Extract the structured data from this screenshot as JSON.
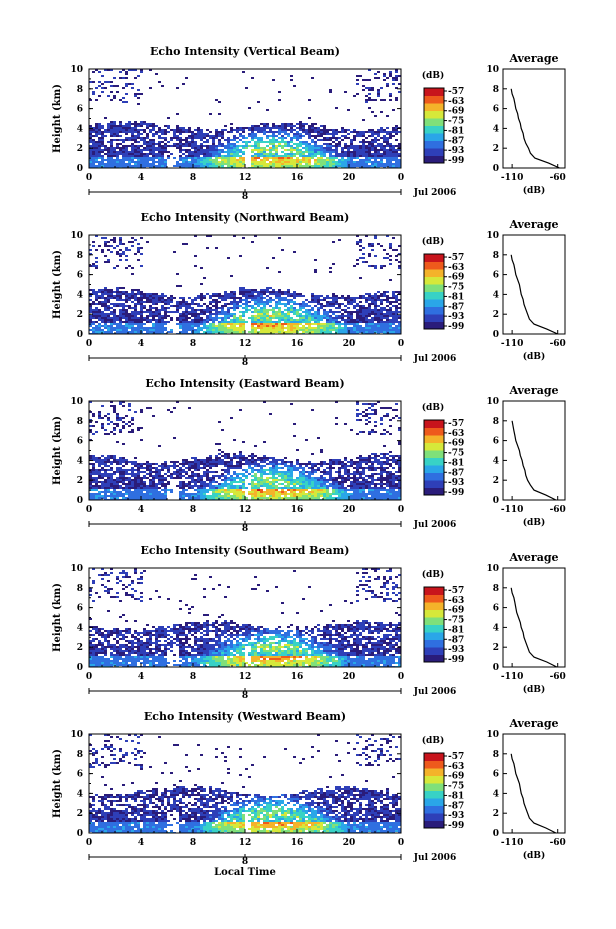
{
  "colors": {
    "colorbar": [
      "#2a1c7a",
      "#2e3fb8",
      "#2f6fe0",
      "#2aa6e8",
      "#38d2c6",
      "#7fe07a",
      "#d6e83a",
      "#f4b32a",
      "#ee5a1c",
      "#c8141c"
    ],
    "cloud_dark": "#2b2a66",
    "line": "#000000"
  },
  "shared": {
    "colorbar_unit": "(dB)",
    "colorbar_ticks": [
      "-57",
      "-63",
      "-69",
      "-75",
      "-81",
      "-87",
      "-93",
      "-99"
    ],
    "average_title": "Average",
    "average_xlabel": "(dB)",
    "date_label": "Jul 2006",
    "date_marker": "8",
    "ylabel": "Height (km)",
    "xlabel": "Local Time"
  },
  "chart_data": [
    {
      "type": "heatmap",
      "title": "Echo Intensity (Vertical Beam)",
      "ylabel": "Height (km)",
      "x_ticks": [
        "0",
        "4",
        "8",
        "12",
        "16",
        "20",
        "0"
      ],
      "y_ticks": [
        "0",
        "2",
        "4",
        "6",
        "8",
        "10"
      ],
      "xlim": [
        0,
        24
      ],
      "ylim": [
        0,
        10
      ],
      "colorbar": {
        "label": "(dB)",
        "range": [
          -99,
          -57
        ],
        "ticks": [
          -57,
          -63,
          -69,
          -75,
          -81,
          -87,
          -93,
          -99
        ]
      },
      "average_profile": {
        "title": "Average",
        "xlabel": "(dB)",
        "x_ticks": [
          "-110",
          "-60"
        ],
        "y_ticks": [
          "0",
          "2",
          "4",
          "6",
          "8",
          "10"
        ],
        "height_km": [
          0,
          0.5,
          1,
          1.5,
          2,
          2.5,
          3,
          3.5,
          4,
          4.5,
          5,
          5.5,
          6,
          6.5,
          7,
          7.5,
          8
        ],
        "db": [
          -58,
          -70,
          -85,
          -90,
          -92,
          -95,
          -97,
          -98,
          -100,
          -101,
          -103,
          -104,
          -106,
          -107,
          -108,
          -110,
          -111
        ]
      }
    },
    {
      "type": "heatmap",
      "title": "Echo Intensity (Northward Beam)",
      "ylabel": "Height (km)",
      "x_ticks": [
        "0",
        "4",
        "8",
        "12",
        "16",
        "20",
        "0"
      ],
      "y_ticks": [
        "0",
        "2",
        "4",
        "6",
        "8",
        "10"
      ],
      "xlim": [
        0,
        24
      ],
      "ylim": [
        0,
        10
      ],
      "colorbar": {
        "label": "(dB)",
        "range": [
          -99,
          -57
        ],
        "ticks": [
          -57,
          -63,
          -69,
          -75,
          -81,
          -87,
          -93,
          -99
        ]
      },
      "average_profile": {
        "title": "Average",
        "xlabel": "(dB)",
        "x_ticks": [
          "-110",
          "-60"
        ],
        "y_ticks": [
          "0",
          "2",
          "4",
          "6",
          "8",
          "10"
        ],
        "height_km": [
          0,
          0.5,
          1,
          1.5,
          2,
          2.5,
          3,
          3.5,
          4,
          4.5,
          5,
          5.5,
          6,
          6.5,
          7,
          7.5,
          8
        ],
        "db": [
          -60,
          -72,
          -86,
          -91,
          -93,
          -95,
          -97,
          -98,
          -100,
          -101,
          -102,
          -104,
          -106,
          -107,
          -108,
          -110,
          -111
        ]
      }
    },
    {
      "type": "heatmap",
      "title": "Echo Intensity (Eastward Beam)",
      "ylabel": "Height (km)",
      "x_ticks": [
        "0",
        "4",
        "8",
        "12",
        "16",
        "20",
        "0"
      ],
      "y_ticks": [
        "0",
        "2",
        "4",
        "6",
        "8",
        "10"
      ],
      "xlim": [
        0,
        24
      ],
      "ylim": [
        0,
        10
      ],
      "colorbar": {
        "label": "(dB)",
        "range": [
          -99,
          -57
        ],
        "ticks": [
          -57,
          -63,
          -69,
          -75,
          -81,
          -87,
          -93,
          -99
        ]
      },
      "average_profile": {
        "title": "Average",
        "xlabel": "(dB)",
        "x_ticks": [
          "-110",
          "-60"
        ],
        "y_ticks": [
          "0",
          "2",
          "4",
          "6",
          "8",
          "10"
        ],
        "height_km": [
          0,
          0.5,
          1,
          1.5,
          2,
          2.5,
          3,
          3.5,
          4,
          4.5,
          5,
          5.5,
          6,
          6.5,
          7,
          7.5,
          8
        ],
        "db": [
          -62,
          -73,
          -86,
          -90,
          -93,
          -95,
          -96,
          -98,
          -99,
          -101,
          -102,
          -104,
          -106,
          -107,
          -108,
          -109,
          -110
        ]
      }
    },
    {
      "type": "heatmap",
      "title": "Echo Intensity (Southward Beam)",
      "ylabel": "Height (km)",
      "x_ticks": [
        "0",
        "4",
        "8",
        "12",
        "16",
        "20",
        "0"
      ],
      "y_ticks": [
        "0",
        "2",
        "4",
        "6",
        "8",
        "10"
      ],
      "xlim": [
        0,
        24
      ],
      "ylim": [
        0,
        10
      ],
      "colorbar": {
        "label": "(dB)",
        "range": [
          -99,
          -57
        ],
        "ticks": [
          -57,
          -63,
          -69,
          -75,
          -81,
          -87,
          -93,
          -99
        ]
      },
      "average_profile": {
        "title": "Average",
        "xlabel": "(dB)",
        "x_ticks": [
          "-110",
          "-60"
        ],
        "y_ticks": [
          "0",
          "2",
          "4",
          "6",
          "8",
          "10"
        ],
        "height_km": [
          0,
          0.5,
          1,
          1.5,
          2,
          2.5,
          3,
          3.5,
          4,
          4.5,
          5,
          5.5,
          6,
          6.5,
          7,
          7.5,
          8
        ],
        "db": [
          -61,
          -72,
          -86,
          -91,
          -93,
          -95,
          -97,
          -98,
          -100,
          -101,
          -103,
          -105,
          -106,
          -107,
          -108,
          -110,
          -111
        ]
      }
    },
    {
      "type": "heatmap",
      "title": "Echo Intensity (Westward Beam)",
      "ylabel": "Height (km)",
      "xlabel": "Local Time",
      "x_ticks": [
        "0",
        "4",
        "8",
        "12",
        "16",
        "20",
        "0"
      ],
      "y_ticks": [
        "0",
        "2",
        "4",
        "6",
        "8",
        "10"
      ],
      "xlim": [
        0,
        24
      ],
      "ylim": [
        0,
        10
      ],
      "colorbar": {
        "label": "(dB)",
        "range": [
          -99,
          -57
        ],
        "ticks": [
          -57,
          -63,
          -69,
          -75,
          -81,
          -87,
          -93,
          -99
        ]
      },
      "average_profile": {
        "title": "Average",
        "xlabel": "(dB)",
        "x_ticks": [
          "-110",
          "-60"
        ],
        "y_ticks": [
          "0",
          "2",
          "4",
          "6",
          "8",
          "10"
        ],
        "height_km": [
          0,
          0.5,
          1,
          1.5,
          2,
          2.5,
          3,
          3.5,
          4,
          4.5,
          5,
          5.5,
          6,
          6.5,
          7,
          7.5,
          8
        ],
        "db": [
          -62,
          -73,
          -86,
          -91,
          -93,
          -95,
          -97,
          -98,
          -100,
          -101,
          -102,
          -104,
          -106,
          -107,
          -108,
          -110,
          -111
        ]
      }
    }
  ]
}
